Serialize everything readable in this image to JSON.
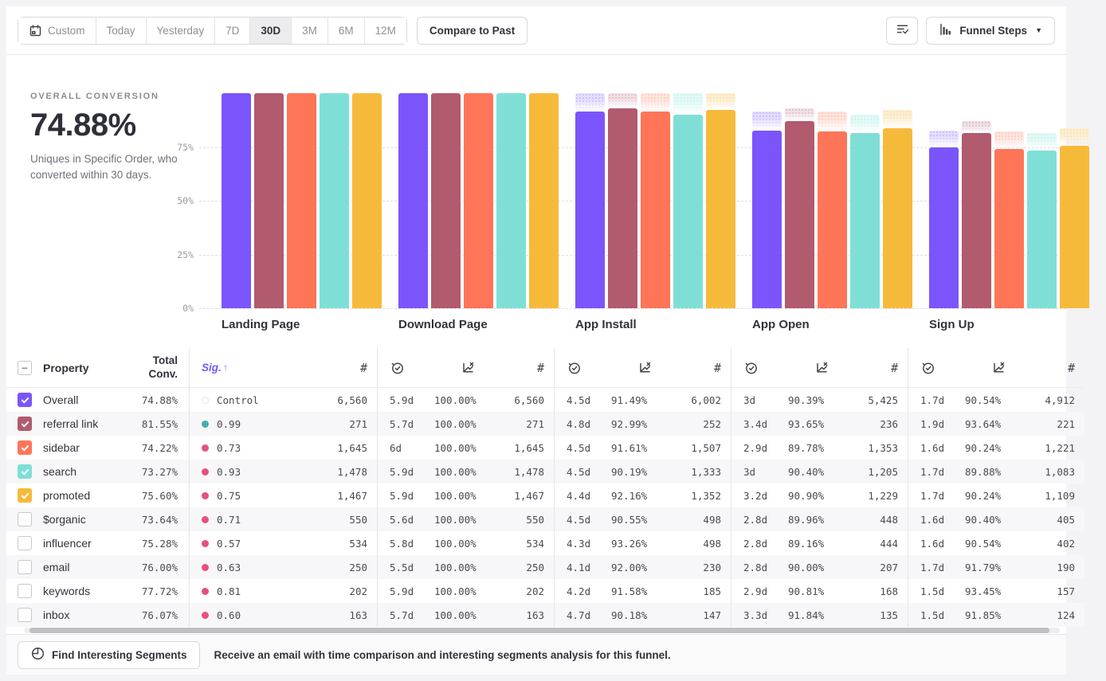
{
  "toolbar": {
    "date_ranges": [
      "Custom",
      "Today",
      "Yesterday",
      "7D",
      "30D",
      "3M",
      "6M",
      "12M"
    ],
    "selected_range": "30D",
    "compare_button": "Compare to Past",
    "view_selector_label": "Funnel Steps",
    "icons": [
      "calendar-icon",
      "list-check-icon",
      "funnel-chart-icon",
      "caret-down-icon"
    ]
  },
  "summary": {
    "title": "OVERALL CONVERSION",
    "value": "74.88%",
    "description": "Uniques in Specific Order, who converted within 30 days."
  },
  "chart_data": {
    "type": "bar",
    "title": "",
    "categories": [
      "Landing Page",
      "Download Page",
      "App Install",
      "App Open",
      "Sign Up"
    ],
    "ylim": [
      0,
      100
    ],
    "yticks": [
      75,
      50,
      25,
      0
    ],
    "ytick_labels": [
      "75%",
      "50%",
      "25%",
      "0%"
    ],
    "grid": "dashed-horizontal",
    "legend_position": "none",
    "ghost_caps": "show previous-step level as faded drop-off cap",
    "series": [
      {
        "name": "Overall",
        "color": "#7B55FB",
        "tint": "#E5DEFF",
        "values": [
          100,
          100,
          91.49,
          82.7,
          74.88
        ]
      },
      {
        "name": "referral link",
        "color": "#B25A6E",
        "tint": "#F0E0E5",
        "values": [
          100,
          100,
          92.99,
          87.08,
          81.55
        ]
      },
      {
        "name": "sidebar",
        "color": "#FF7557",
        "tint": "#FFE5DE",
        "values": [
          100,
          100,
          91.61,
          82.25,
          74.22
        ]
      },
      {
        "name": "search",
        "color": "#7FDFD6",
        "tint": "#E3F9F6",
        "values": [
          100,
          100,
          90.19,
          81.53,
          73.27
        ]
      },
      {
        "name": "promoted",
        "color": "#F6BA3B",
        "tint": "#FCEED2",
        "values": [
          100,
          100,
          92.16,
          83.77,
          75.6
        ]
      }
    ]
  },
  "table": {
    "select_all_state": "indeterminate",
    "headers": {
      "property": "Property",
      "total_conv_line1": "Total",
      "total_conv_line2": "Conv.",
      "sig": "Sig.",
      "sig_arrow": "↑",
      "count_symbol": "#",
      "step_metric_icons": [
        "time-to-convert-icon",
        "conversion-rate-icon",
        "count-icon"
      ]
    },
    "rows": [
      {
        "checked": true,
        "color": "#7B55FB",
        "property": "Overall",
        "total": "74.88%",
        "sig_type": "control",
        "sig": "Control",
        "landing_count": "6,560",
        "steps": [
          {
            "t": "5.9d",
            "r": "100.00%",
            "n": "6,560"
          },
          {
            "t": "4.5d",
            "r": "91.49%",
            "n": "6,002"
          },
          {
            "t": "3d",
            "r": "90.39%",
            "n": "5,425"
          },
          {
            "t": "1.7d",
            "r": "90.54%",
            "n": "4,912"
          }
        ]
      },
      {
        "checked": true,
        "color": "#B25A6E",
        "property": "referral link",
        "total": "81.55%",
        "sig_type": "high",
        "sig": "0.99",
        "landing_count": "271",
        "steps": [
          {
            "t": "5.7d",
            "r": "100.00%",
            "n": "271"
          },
          {
            "t": "4.8d",
            "r": "92.99%",
            "n": "252"
          },
          {
            "t": "3.4d",
            "r": "93.65%",
            "n": "236"
          },
          {
            "t": "1.9d",
            "r": "93.64%",
            "n": "221"
          }
        ]
      },
      {
        "checked": true,
        "color": "#FF7557",
        "property": "sidebar",
        "total": "74.22%",
        "sig_type": "low",
        "sig": "0.73",
        "landing_count": "1,645",
        "steps": [
          {
            "t": "6d",
            "r": "100.00%",
            "n": "1,645"
          },
          {
            "t": "4.5d",
            "r": "91.61%",
            "n": "1,507"
          },
          {
            "t": "2.9d",
            "r": "89.78%",
            "n": "1,353"
          },
          {
            "t": "1.6d",
            "r": "90.24%",
            "n": "1,221"
          }
        ]
      },
      {
        "checked": true,
        "color": "#7FDFD6",
        "property": "search",
        "total": "73.27%",
        "sig_type": "low",
        "sig": "0.93",
        "landing_count": "1,478",
        "steps": [
          {
            "t": "5.9d",
            "r": "100.00%",
            "n": "1,478"
          },
          {
            "t": "4.5d",
            "r": "90.19%",
            "n": "1,333"
          },
          {
            "t": "3d",
            "r": "90.40%",
            "n": "1,205"
          },
          {
            "t": "1.7d",
            "r": "89.88%",
            "n": "1,083"
          }
        ]
      },
      {
        "checked": true,
        "color": "#F6BA3B",
        "property": "promoted",
        "total": "75.60%",
        "sig_type": "low",
        "sig": "0.75",
        "landing_count": "1,467",
        "steps": [
          {
            "t": "5.9d",
            "r": "100.00%",
            "n": "1,467"
          },
          {
            "t": "4.4d",
            "r": "92.16%",
            "n": "1,352"
          },
          {
            "t": "3.2d",
            "r": "90.90%",
            "n": "1,229"
          },
          {
            "t": "1.7d",
            "r": "90.24%",
            "n": "1,109"
          }
        ]
      },
      {
        "checked": false,
        "color": null,
        "property": "$organic",
        "total": "73.64%",
        "sig_type": "low",
        "sig": "0.71",
        "landing_count": "550",
        "steps": [
          {
            "t": "5.6d",
            "r": "100.00%",
            "n": "550"
          },
          {
            "t": "4.5d",
            "r": "90.55%",
            "n": "498"
          },
          {
            "t": "2.8d",
            "r": "89.96%",
            "n": "448"
          },
          {
            "t": "1.6d",
            "r": "90.40%",
            "n": "405"
          }
        ]
      },
      {
        "checked": false,
        "color": null,
        "property": "influencer",
        "total": "75.28%",
        "sig_type": "low",
        "sig": "0.57",
        "landing_count": "534",
        "steps": [
          {
            "t": "5.8d",
            "r": "100.00%",
            "n": "534"
          },
          {
            "t": "4.3d",
            "r": "93.26%",
            "n": "498"
          },
          {
            "t": "2.8d",
            "r": "89.16%",
            "n": "444"
          },
          {
            "t": "1.6d",
            "r": "90.54%",
            "n": "402"
          }
        ]
      },
      {
        "checked": false,
        "color": null,
        "property": "email",
        "total": "76.00%",
        "sig_type": "low",
        "sig": "0.63",
        "landing_count": "250",
        "steps": [
          {
            "t": "5.5d",
            "r": "100.00%",
            "n": "250"
          },
          {
            "t": "4.1d",
            "r": "92.00%",
            "n": "230"
          },
          {
            "t": "2.8d",
            "r": "90.00%",
            "n": "207"
          },
          {
            "t": "1.7d",
            "r": "91.79%",
            "n": "190"
          }
        ]
      },
      {
        "checked": false,
        "color": null,
        "property": "keywords",
        "total": "77.72%",
        "sig_type": "low",
        "sig": "0.81",
        "landing_count": "202",
        "steps": [
          {
            "t": "5.9d",
            "r": "100.00%",
            "n": "202"
          },
          {
            "t": "4.2d",
            "r": "91.58%",
            "n": "185"
          },
          {
            "t": "2.9d",
            "r": "90.81%",
            "n": "168"
          },
          {
            "t": "1.5d",
            "r": "93.45%",
            "n": "157"
          }
        ]
      },
      {
        "checked": false,
        "color": null,
        "property": "inbox",
        "total": "76.07%",
        "sig_type": "low",
        "sig": "0.60",
        "landing_count": "163",
        "steps": [
          {
            "t": "5.7d",
            "r": "100.00%",
            "n": "163"
          },
          {
            "t": "4.7d",
            "r": "90.18%",
            "n": "147"
          },
          {
            "t": "3.3d",
            "r": "91.84%",
            "n": "135"
          },
          {
            "t": "1.5d",
            "r": "91.85%",
            "n": "124"
          }
        ]
      }
    ]
  },
  "footer": {
    "button_label": "Find Interesting Segments",
    "message": "Receive an email with time comparison and interesting segments analysis for this funnel."
  },
  "colors": {
    "accent_purple": "#7856FF",
    "sig_high": "#49C0B8",
    "sig_low": "#E8507E",
    "stripe": "#F7F7F9"
  }
}
